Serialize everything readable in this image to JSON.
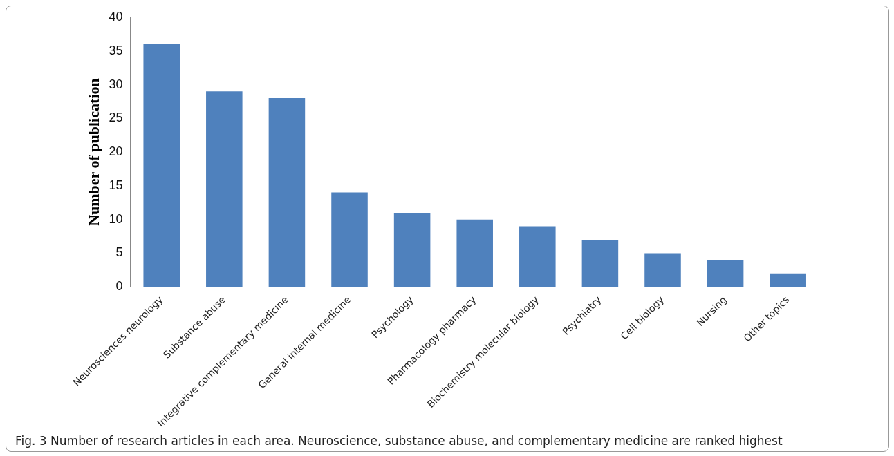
{
  "chart_data": {
    "type": "bar",
    "ylabel": "Number of publication",
    "categories": [
      "Neurosciences neurology",
      "Substance abuse",
      "Integrative complementary medicine",
      "General internal medicine",
      "Psychology",
      "Pharmacology pharmacy",
      "Biochemistry molecular biology",
      "Psychiatry",
      "Cell biology",
      "Nursing",
      "Other topics"
    ],
    "values": [
      36,
      29,
      28,
      14,
      11,
      10,
      9,
      7,
      5,
      4,
      2
    ],
    "color": "#4f81bd",
    "ylim": [
      0,
      40
    ],
    "yticks": [
      0,
      5,
      10,
      15,
      20,
      25,
      30,
      35,
      40
    ],
    "annotations": [
      "Fig. 3  Number of research articles in each area. Neuroscience, substance abuse, and complementary medicine are ranked highest"
    ]
  }
}
